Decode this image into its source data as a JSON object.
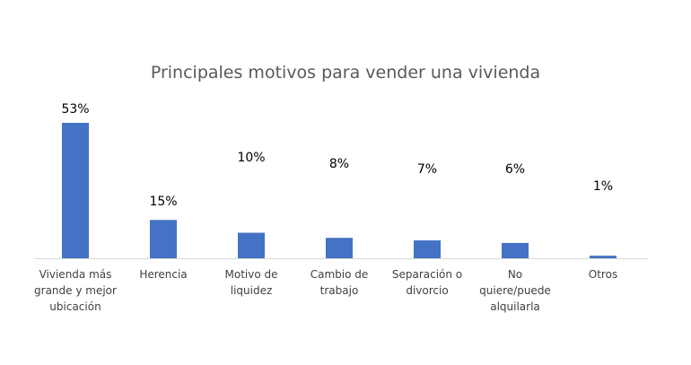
{
  "chart_data": {
    "type": "bar",
    "title": "Principales motivos para vender una vivienda",
    "categories": [
      [
        "Vivienda más",
        "grande y mejor",
        "ubicación"
      ],
      [
        "Herencia"
      ],
      [
        "Motivo de",
        "liquidez"
      ],
      [
        "Cambio de",
        "trabajo"
      ],
      [
        "Separación o",
        "divorcio"
      ],
      [
        "No",
        "quiere/puede",
        "alquilarla"
      ],
      [
        "Otros"
      ]
    ],
    "values": [
      53,
      15,
      10,
      8,
      7,
      6,
      1
    ],
    "data_labels": [
      "53%",
      "15%",
      "10%",
      "8%",
      "7%",
      "6%",
      "1%"
    ],
    "unit": "%",
    "ylim": [
      0,
      53
    ],
    "grid": false,
    "legend": "none",
    "bar_color": "#4472C4",
    "axis_color": "#D9D9D9"
  }
}
